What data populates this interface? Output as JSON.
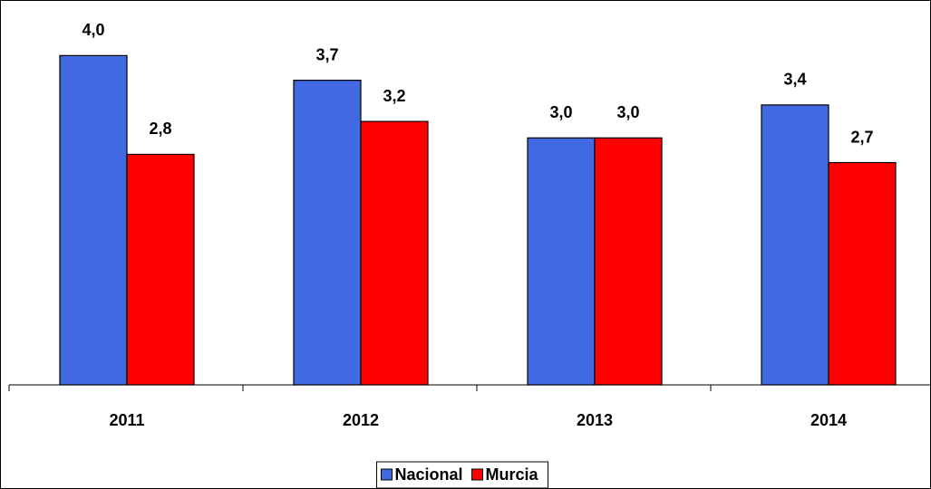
{
  "chart_data": {
    "type": "bar",
    "categories": [
      "2011",
      "2012",
      "2013",
      "2014"
    ],
    "series": [
      {
        "name": "Nacional",
        "color": "#4169e1",
        "values": [
          4.0,
          3.7,
          3.0,
          3.4
        ],
        "value_labels": [
          "4,0",
          "3,7",
          "3,0",
          "3,4"
        ]
      },
      {
        "name": "Murcia",
        "color": "#ff0000",
        "values": [
          2.8,
          3.2,
          3.0,
          2.7
        ],
        "value_labels": [
          "2,8",
          "3,2",
          "3,0",
          "2,7"
        ]
      }
    ],
    "ylim": [
      0,
      4.4
    ],
    "legend": "bottom"
  }
}
